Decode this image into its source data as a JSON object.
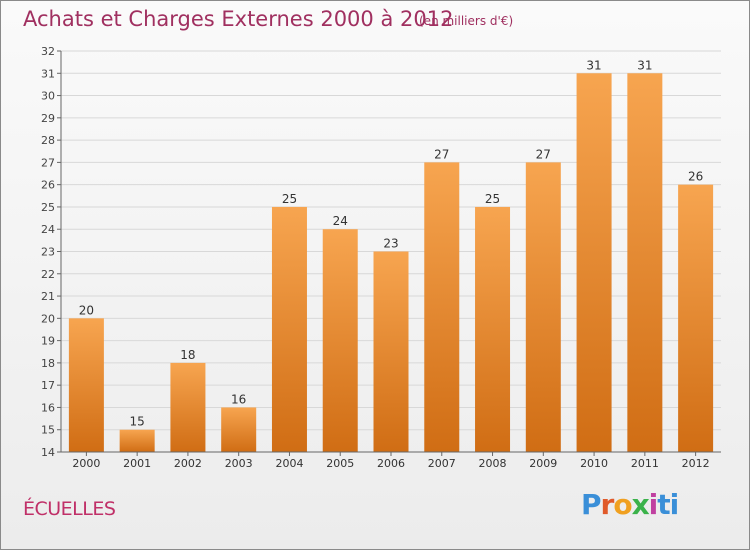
{
  "chart_data": {
    "type": "bar",
    "title": "Achats et Charges Externes 2000 à 2012",
    "subtitle": "(en milliers d'€)",
    "categories": [
      "2000",
      "2001",
      "2002",
      "2003",
      "2004",
      "2005",
      "2006",
      "2007",
      "2008",
      "2009",
      "2010",
      "2011",
      "2012"
    ],
    "values": [
      20,
      15,
      18,
      16,
      25,
      24,
      23,
      27,
      25,
      27,
      31,
      31,
      26
    ],
    "data_labels": [
      "20",
      "15",
      "18",
      "16",
      "25",
      "24",
      "23",
      "27",
      "25",
      "27",
      "31",
      "31",
      "26"
    ],
    "ylim": [
      14,
      32
    ],
    "yticks": [
      "14",
      "15",
      "16",
      "17",
      "18",
      "19",
      "20",
      "21",
      "22",
      "23",
      "24",
      "25",
      "26",
      "27",
      "28",
      "29",
      "30",
      "31",
      "32"
    ],
    "grid": true,
    "bar_color_top": "#f7a550",
    "bar_color_bottom": "#d06d14"
  },
  "place_name": "ÉCUELLES",
  "logo": {
    "text": "Proxiti"
  }
}
